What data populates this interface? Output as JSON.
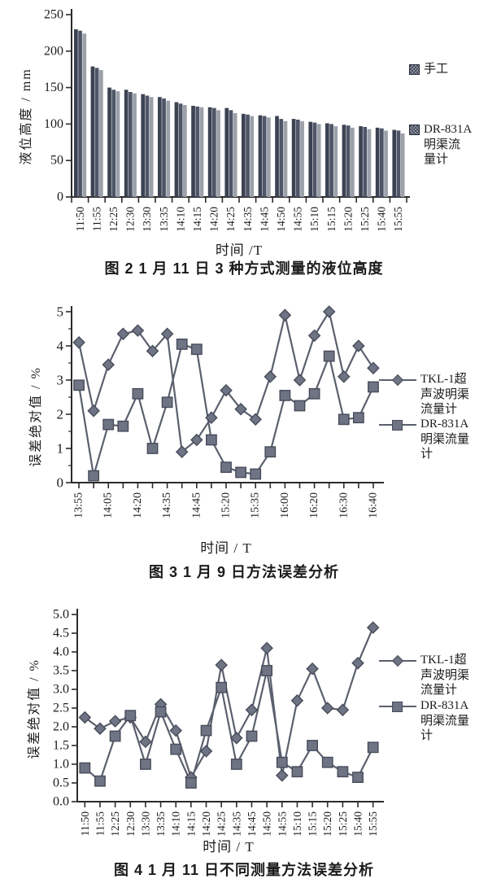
{
  "colors": {
    "axis": "#2b2b2b",
    "text": "#1b1b1b",
    "line": "#5b606e",
    "marker_fill": "#6f7485",
    "marker_stroke": "#474c5a",
    "bar_colors": [
      "#3b4252",
      "#4e5567",
      "#9ba0a9"
    ]
  },
  "figure2": {
    "y_axis_label": "液位高度 / mm",
    "x_axis_label": "时间 /T",
    "caption": "图 2  1 月 11 日 3 种方式测量的液位高度",
    "legend": [
      {
        "label": "手工"
      },
      {
        "label": "DR-831A\n明渠流\n量计"
      }
    ]
  },
  "figure3": {
    "y_axis_label": "误差绝对值 / %",
    "x_axis_label": "时间 / T",
    "caption": "图 3  1 月 9 日方法误差分析",
    "legend": [
      {
        "label": "TKL-1超\n声波明渠\n流量计"
      },
      {
        "label": "DR-831A\n明渠流量\n计"
      }
    ]
  },
  "figure4": {
    "y_axis_label": "误差绝对值 / %",
    "x_axis_label": "时间 / T",
    "caption": "图 4  1 月 11 日不同测量方法误差分析",
    "legend": [
      {
        "label": "TKL-1超\n声波明渠\n流量计"
      },
      {
        "label": "DR-831A\n明渠流量\n计"
      }
    ]
  },
  "chart_data": [
    {
      "id": "figure2",
      "type": "bar",
      "title": "图2 1月11日3种方式测量的液位高度",
      "xlabel": "时间/T",
      "ylabel": "液位高度/mm",
      "ylim": [
        0,
        250
      ],
      "yticks": [
        0,
        50,
        100,
        150,
        200,
        250
      ],
      "grid": false,
      "legend_position": "right",
      "categories": [
        "11:50",
        "11:55",
        "12:25",
        "12:30",
        "13:30",
        "13:35",
        "14:10",
        "14:15",
        "14:20",
        "14:25",
        "14:35",
        "14:45",
        "14:50",
        "14:55",
        "15:10",
        "15:15",
        "15:20",
        "15:25",
        "15:40",
        "15:55"
      ],
      "series": [
        {
          "name": "手工",
          "values": [
            230,
            179,
            150,
            147,
            141,
            137,
            130,
            125,
            123,
            122,
            114,
            112,
            111,
            107,
            103,
            101,
            99,
            97,
            95,
            92
          ]
        },
        {
          "name": "",
          "values": [
            228,
            177,
            147,
            144,
            139,
            135,
            128,
            124,
            122,
            119,
            113,
            111,
            107,
            106,
            102,
            100,
            98,
            96,
            94,
            91
          ]
        },
        {
          "name": "DR-831A明渠流量计",
          "values": [
            224,
            174,
            145,
            142,
            137,
            132,
            126,
            123,
            119,
            115,
            111,
            109,
            104,
            104,
            100,
            97,
            95,
            93,
            91,
            87
          ]
        }
      ]
    },
    {
      "id": "figure3",
      "type": "line",
      "title": "图3 1月9日方法误差分析",
      "xlabel": "时间/T",
      "ylabel": "误差绝对值/%",
      "ylim": [
        0,
        5
      ],
      "yticks": [
        0,
        1,
        2,
        3,
        4,
        5
      ],
      "grid": false,
      "legend_position": "right",
      "categories": [
        "13:55",
        "",
        "14:05",
        "",
        "14:20",
        "",
        "14:35",
        "",
        "14:45",
        "",
        "15:20",
        "",
        "15:35",
        "",
        "16:00",
        "",
        "16:20",
        "",
        "16:30",
        "",
        "16:40"
      ],
      "series": [
        {
          "name": "TKL-1超声波明渠流量计",
          "marker": "diamond",
          "values": [
            4.1,
            2.1,
            3.45,
            4.35,
            4.45,
            3.85,
            4.35,
            0.9,
            1.25,
            1.9,
            2.7,
            2.15,
            1.85,
            3.1,
            4.9,
            3.0,
            4.3,
            5.0,
            3.1,
            4.0,
            3.35
          ]
        },
        {
          "name": "DR-831A明渠流量计",
          "marker": "square",
          "values": [
            2.85,
            0.2,
            1.7,
            1.65,
            2.6,
            1.0,
            2.35,
            4.05,
            3.9,
            1.25,
            0.45,
            0.3,
            0.25,
            0.9,
            2.55,
            2.25,
            2.6,
            3.7,
            1.85,
            1.9,
            2.8
          ]
        }
      ]
    },
    {
      "id": "figure4",
      "type": "line",
      "title": "图4 1月11日不同测量方法误差分析",
      "xlabel": "时间/T",
      "ylabel": "误差绝对值/%",
      "ylim": [
        0,
        5
      ],
      "yticks": [
        0,
        0.5,
        1,
        1.5,
        2,
        2.5,
        3,
        3.5,
        4,
        4.5,
        5
      ],
      "grid": false,
      "legend_position": "right",
      "categories": [
        "11:50",
        "11:55",
        "12:25",
        "12:30",
        "13:30",
        "13:35",
        "14:10",
        "14:15",
        "14:20",
        "14:25",
        "14:35",
        "14:45",
        "14:50",
        "14:55",
        "15:10",
        "15:15",
        "15:20",
        "15:25",
        "15:40",
        "15:55"
      ],
      "series": [
        {
          "name": "TKL-1超声波明渠流量计",
          "marker": "diamond",
          "values": [
            2.25,
            1.95,
            2.15,
            2.25,
            1.6,
            2.6,
            1.9,
            0.65,
            1.35,
            3.65,
            1.7,
            2.45,
            4.1,
            0.7,
            2.7,
            3.55,
            2.5,
            2.45,
            3.7,
            4.65
          ]
        },
        {
          "name": "DR-831A明渠流量计",
          "marker": "square",
          "values": [
            0.9,
            0.55,
            1.75,
            2.3,
            1.0,
            2.4,
            1.4,
            0.5,
            1.9,
            3.05,
            1.0,
            1.75,
            3.5,
            1.05,
            0.8,
            1.5,
            1.05,
            0.8,
            0.65,
            1.45
          ]
        }
      ]
    }
  ]
}
